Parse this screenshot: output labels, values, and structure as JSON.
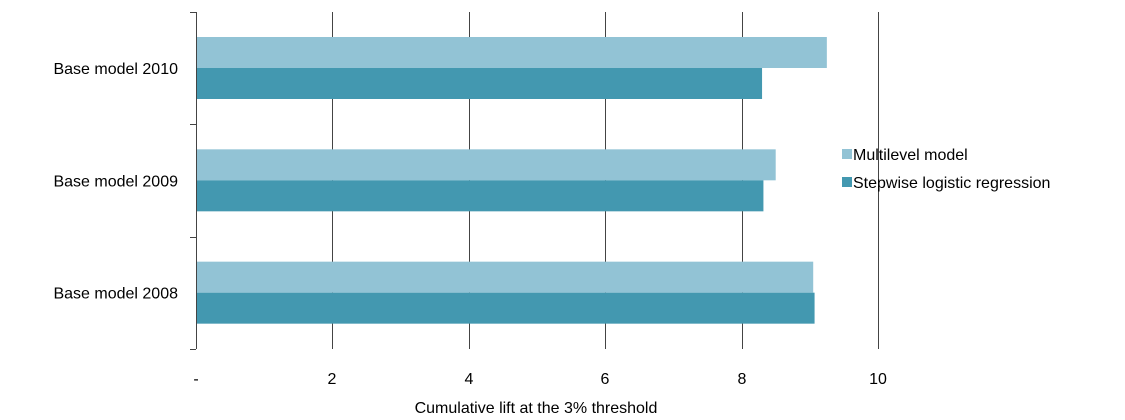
{
  "chart_data": {
    "type": "bar",
    "orientation": "horizontal",
    "categories": [
      "Base model 2010",
      "Base model 2009",
      "Base model 2008"
    ],
    "series": [
      {
        "name": "Multilevel model",
        "color": "#92c3d5",
        "values": [
          9.25,
          8.5,
          9.05
        ]
      },
      {
        "name": "Stepwise logistic regression",
        "color": "#4398b0",
        "values": [
          8.3,
          8.32,
          9.07
        ]
      }
    ],
    "x_ticks": [
      "-",
      "2",
      "4",
      "6",
      "8",
      "10"
    ],
    "xlim": [
      0,
      10
    ],
    "xlabel": "Cumulative lift at  the 3% threshold",
    "ylabel": "",
    "title": "",
    "grid": "vertical",
    "legend_position": "right"
  }
}
